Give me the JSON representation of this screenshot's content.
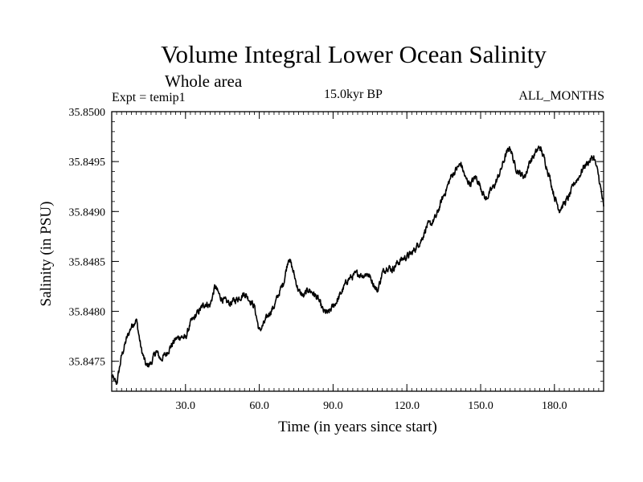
{
  "chart_data": {
    "type": "line",
    "title": "Volume Integral Lower Ocean Salinity",
    "subtitle": "Whole area",
    "experiment_label": "Expt = temip1",
    "period_label": "15.0kyr BP",
    "months_label": "ALL_MONTHS",
    "xlabel": "Time (in years since start)",
    "ylabel": "Salinity (in PSU)",
    "xlim": [
      0,
      200
    ],
    "ylim": [
      35.8472,
      35.85
    ],
    "x_ticks": [
      30.0,
      60.0,
      90.0,
      120.0,
      150.0,
      180.0
    ],
    "x_tick_labels": [
      "30.0",
      "60.0",
      "90.0",
      "120.0",
      "150.0",
      "180.0"
    ],
    "y_ticks": [
      35.8475,
      35.848,
      35.8485,
      35.849,
      35.8495,
      35.85
    ],
    "y_tick_labels": [
      "35.8475",
      "35.8480",
      "35.8485",
      "35.8490",
      "35.8495",
      "35.8500"
    ],
    "grid": false,
    "series": [
      {
        "name": "salinity",
        "color": "#000000",
        "x": [
          0,
          2,
          4,
          6,
          8,
          10,
          12,
          14,
          16,
          18,
          20,
          22,
          24,
          26,
          28,
          30,
          32,
          34,
          36,
          38,
          40,
          42,
          44,
          46,
          48,
          50,
          52,
          54,
          56,
          58,
          60,
          62,
          64,
          66,
          68,
          70,
          72,
          74,
          76,
          78,
          80,
          82,
          84,
          86,
          88,
          90,
          92,
          94,
          96,
          98,
          100,
          102,
          104,
          106,
          108,
          110,
          112,
          114,
          116,
          118,
          120,
          122,
          124,
          126,
          128,
          130,
          132,
          134,
          136,
          138,
          140,
          142,
          144,
          146,
          148,
          150,
          152,
          154,
          156,
          158,
          160,
          162,
          164,
          166,
          168,
          170,
          172,
          174,
          176,
          178,
          180,
          182,
          184,
          186,
          188,
          190,
          192,
          194,
          196,
          198,
          200
        ],
        "values": [
          35.84735,
          35.84727,
          35.84755,
          35.84772,
          35.84785,
          35.84792,
          35.84762,
          35.84745,
          35.84748,
          35.8476,
          35.84752,
          35.84757,
          35.84765,
          35.84772,
          35.84775,
          35.84773,
          35.84788,
          35.84795,
          35.84802,
          35.84808,
          35.84806,
          35.84825,
          35.84815,
          35.8481,
          35.84808,
          35.84811,
          35.84814,
          35.84818,
          35.84812,
          35.84805,
          35.8478,
          35.84788,
          35.84798,
          35.84805,
          35.84818,
          35.8483,
          35.84855,
          35.84838,
          35.8482,
          35.84815,
          35.84822,
          35.84818,
          35.84812,
          35.848,
          35.84798,
          35.84805,
          35.84812,
          35.84822,
          35.84832,
          35.84835,
          35.84838,
          35.84836,
          35.84838,
          35.8483,
          35.8482,
          35.84838,
          35.84845,
          35.84842,
          35.84848,
          35.84852,
          35.84855,
          35.84858,
          35.84865,
          35.84872,
          35.84885,
          35.84888,
          35.84895,
          35.8491,
          35.84922,
          35.84935,
          35.84942,
          35.84948,
          35.84932,
          35.84928,
          35.84935,
          35.84925,
          35.84912,
          35.8492,
          35.84928,
          35.8494,
          35.84955,
          35.84965,
          35.84945,
          35.84938,
          35.84935,
          35.8495,
          35.84957,
          35.84965,
          35.84952,
          35.84935,
          35.84915,
          35.84902,
          35.84908,
          35.84915,
          35.84928,
          35.84935,
          35.84945,
          35.8495,
          35.84955,
          35.84935,
          35.84905
        ]
      }
    ]
  }
}
